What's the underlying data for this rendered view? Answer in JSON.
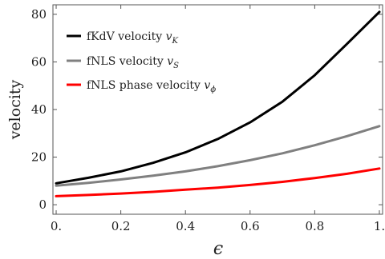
{
  "chart_data": {
    "type": "line",
    "xlabel": "ϵ",
    "ylabel": "velocity",
    "xlim": [
      -0.01,
      1.01
    ],
    "ylim": [
      -4,
      84
    ],
    "x_ticks": [
      "0.",
      "0.2",
      "0.4",
      "0.6",
      "0.8",
      "1."
    ],
    "x_tick_values": [
      0,
      0.2,
      0.4,
      0.6,
      0.8,
      1.0
    ],
    "y_ticks": [
      "0",
      "20",
      "40",
      "60",
      "80"
    ],
    "y_tick_values": [
      0,
      20,
      40,
      60,
      80
    ],
    "x": [
      0.0,
      0.1,
      0.2,
      0.3,
      0.4,
      0.5,
      0.6,
      0.7,
      0.8,
      0.9,
      1.0
    ],
    "series": [
      {
        "name": "fKdV velocity",
        "symbol": "v",
        "subscript": "K",
        "color": "#000000",
        "values": [
          9.0,
          11.3,
          14.0,
          17.6,
          22.0,
          27.6,
          34.6,
          43.3,
          54.4,
          67.6,
          81.0
        ]
      },
      {
        "name": "fNLS velocity",
        "symbol": "v",
        "subscript": "S",
        "color": "#808080",
        "values": [
          8.0,
          9.2,
          10.6,
          12.2,
          14.0,
          16.2,
          18.7,
          21.6,
          25.0,
          28.8,
          33.0
        ]
      },
      {
        "name": "fNLS phase velocity",
        "symbol": "v",
        "subscript": "ϕ",
        "color": "#ff0000",
        "values": [
          3.6,
          4.1,
          4.7,
          5.4,
          6.3,
          7.2,
          8.3,
          9.6,
          11.2,
          13.0,
          15.2
        ]
      }
    ],
    "legend_position": "top-left",
    "grid": false
  }
}
